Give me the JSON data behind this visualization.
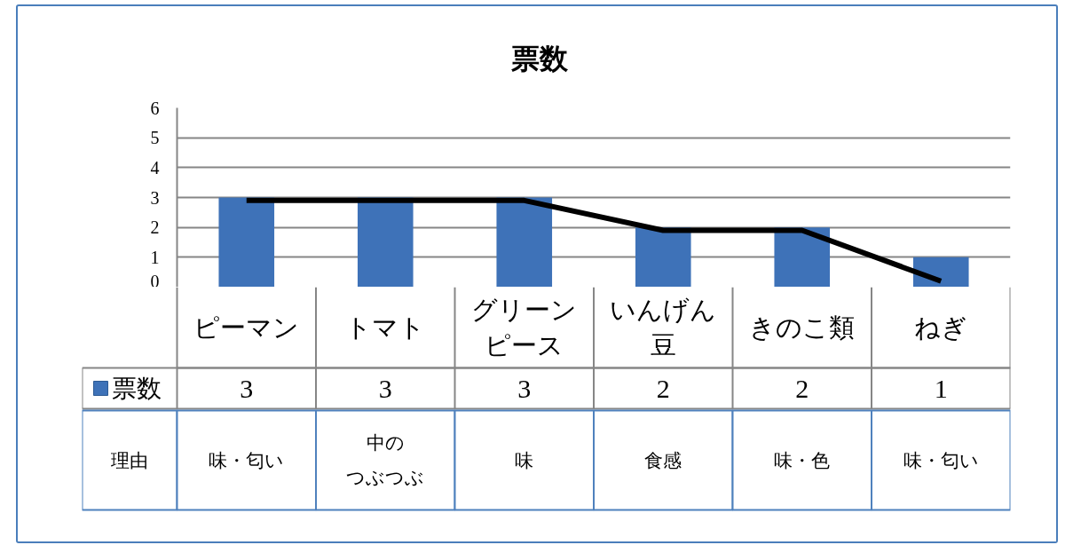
{
  "chart_data": {
    "type": "bar",
    "title": "票数",
    "categories": [
      "ピーマン",
      "トマト",
      "グリーンピース",
      "いんげん豆",
      "きのこ類",
      "ねぎ"
    ],
    "series": [
      {
        "name": "票数",
        "color": "#3e72b8",
        "values": [
          3,
          3,
          3,
          2,
          2,
          1
        ],
        "value_labels": [
          "3",
          "3",
          "3",
          "2",
          "2",
          "1"
        ]
      },
      {
        "type": "line",
        "color": "#000000",
        "values": [
          2.9,
          2.9,
          2.9,
          1.9,
          1.9,
          0.2
        ]
      }
    ],
    "ylim": [
      0,
      6
    ],
    "yticks": [
      0,
      1,
      2,
      3,
      4,
      5,
      6
    ],
    "grid": "y",
    "legend": "bottom left",
    "annotations": [
      "理由",
      "味・匂い",
      "中のつぶつぶ",
      "味",
      "食感",
      "味・色",
      "味・匂い"
    ]
  }
}
